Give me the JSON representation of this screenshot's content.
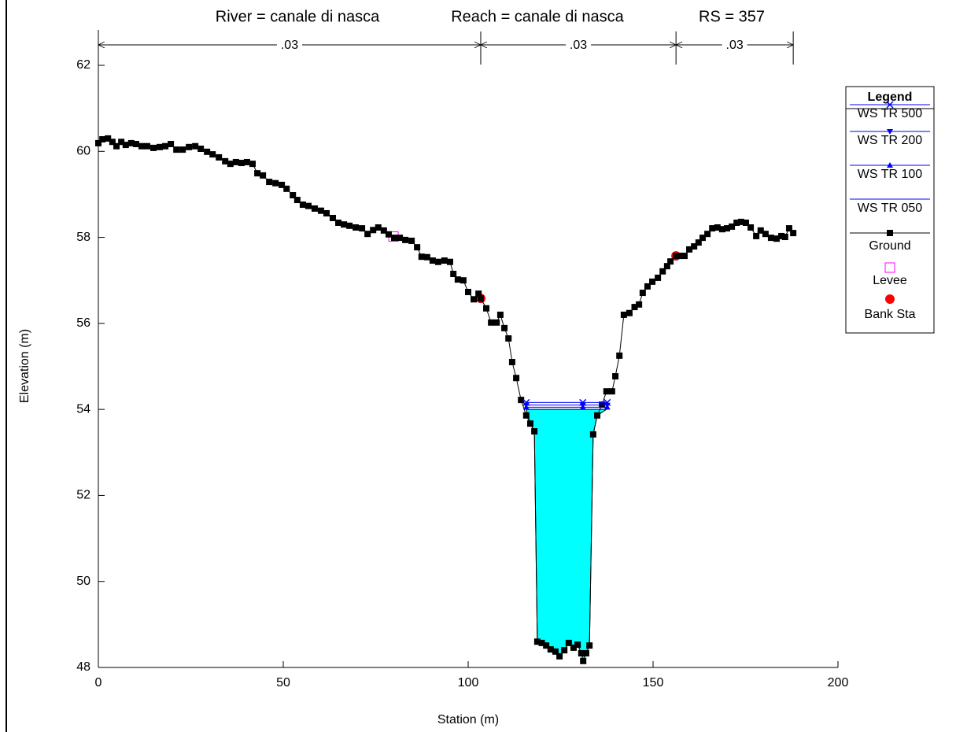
{
  "chart_data": {
    "type": "cross-section",
    "title": [
      "River = canale di nasca",
      "Reach = canale di nasca",
      "RS = 357"
    ],
    "x_label": "Station (m)",
    "y_label": "Elevation (m)",
    "xlim": [
      0,
      200
    ],
    "xticks": [
      0,
      50,
      100,
      150,
      200
    ],
    "ylim": [
      48,
      62
    ],
    "yticks": [
      48,
      50,
      52,
      54,
      56,
      58,
      60,
      62
    ],
    "legend_title": "Legend",
    "legend_position": "right",
    "n_values": {
      "labels": [
        ".03",
        ".03",
        ".03"
      ],
      "stations": [
        0,
        103.4,
        156.2,
        187.9
      ]
    },
    "series": [
      {
        "name": "WS TR 500",
        "color": "#0000ff",
        "marker": "x",
        "x": [
          115.7,
          131,
          137.6
        ],
        "values": [
          54.16,
          54.16,
          54.16
        ]
      },
      {
        "name": "WS TR 200",
        "color": "#0000ff",
        "marker": "triangle-down",
        "x": [
          115.7,
          131,
          137.6
        ],
        "values": [
          54.1,
          54.1,
          54.1
        ]
      },
      {
        "name": "WS TR 100",
        "color": "#0000ff",
        "marker": "triangle-up",
        "x": [
          115.7,
          131,
          137.6
        ],
        "values": [
          54.05,
          54.05,
          54.05
        ]
      },
      {
        "name": "WS TR 050",
        "color": "#0000ff",
        "marker": "none",
        "fill": "#00ffff",
        "x": [
          115.7,
          137.4
        ],
        "values": [
          54.0,
          54.0
        ]
      },
      {
        "name": "Ground",
        "color": "#000000",
        "marker": "square",
        "x": [
          0,
          1.1,
          2.6,
          3.8,
          4.9,
          6.2,
          7.4,
          8.9,
          10.2,
          11.7,
          13.2,
          14.9,
          16.6,
          18.1,
          19.6,
          21.1,
          22.8,
          24.5,
          26.2,
          27.7,
          29.4,
          30.9,
          32.6,
          34.3,
          35.7,
          37.2,
          38.7,
          40.2,
          41.7,
          43.0,
          44.5,
          46.2,
          47.9,
          49.6,
          50.9,
          52.6,
          53.8,
          55.3,
          56.8,
          58.5,
          60.2,
          61.7,
          63.4,
          64.9,
          66.4,
          67.9,
          69.6,
          71.3,
          72.8,
          74.3,
          75.7,
          77.2,
          78.5,
          80.0,
          81.5,
          83.0,
          84.7,
          86.2,
          87.4,
          88.9,
          90.4,
          91.9,
          93.6,
          95.1,
          96.0,
          97.2,
          98.7,
          100.0,
          101.5,
          102.8,
          103.4,
          104.9,
          106.2,
          107.7,
          108.7,
          109.8,
          110.9,
          111.9,
          113.0,
          114.3,
          115.7,
          116.8,
          117.9,
          118.7,
          119.9,
          121.1,
          122.3,
          123.6,
          124.7,
          126.0,
          127.2,
          128.5,
          129.6,
          130.6,
          131.1,
          131.9,
          132.8,
          133.8,
          134.9,
          136.2,
          137.4,
          138.9,
          139.8,
          140.9,
          142.1,
          143.6,
          145.0,
          146.2,
          147.2,
          148.5,
          149.8,
          151.3,
          152.6,
          153.8,
          154.7,
          156.2,
          157.2,
          158.5,
          159.8,
          161.1,
          162.3,
          163.4,
          164.7,
          166.0,
          167.4,
          168.7,
          170.0,
          171.3,
          172.6,
          173.8,
          175.1,
          176.4,
          177.9,
          179.1,
          180.4,
          181.9,
          183.4,
          184.7,
          185.7,
          186.8,
          187.9
        ],
        "values": [
          60.19,
          60.28,
          60.3,
          60.22,
          60.12,
          60.22,
          60.15,
          60.19,
          60.17,
          60.12,
          60.12,
          60.08,
          60.1,
          60.12,
          60.17,
          60.04,
          60.04,
          60.1,
          60.12,
          60.06,
          59.99,
          59.93,
          59.86,
          59.77,
          59.71,
          59.75,
          59.73,
          59.75,
          59.71,
          59.49,
          59.44,
          59.29,
          59.26,
          59.22,
          59.13,
          58.98,
          58.87,
          58.76,
          58.73,
          58.67,
          58.62,
          58.56,
          58.45,
          58.34,
          58.3,
          58.27,
          58.23,
          58.21,
          58.08,
          58.17,
          58.23,
          58.16,
          58.07,
          57.99,
          57.99,
          57.94,
          57.92,
          57.77,
          57.55,
          57.54,
          57.46,
          57.43,
          57.46,
          57.43,
          57.15,
          57.02,
          57.0,
          56.73,
          56.56,
          56.69,
          56.58,
          56.35,
          56.02,
          56.02,
          56.2,
          55.89,
          55.65,
          55.1,
          54.73,
          54.22,
          53.86,
          53.67,
          53.49,
          48.6,
          48.57,
          48.51,
          48.42,
          48.37,
          48.26,
          48.4,
          48.57,
          48.46,
          48.53,
          48.33,
          48.15,
          48.33,
          48.51,
          53.42,
          53.86,
          54.11,
          54.42,
          54.42,
          54.77,
          55.25,
          56.2,
          56.24,
          56.38,
          56.44,
          56.71,
          56.86,
          56.97,
          57.06,
          57.21,
          57.33,
          57.44,
          57.57,
          57.57,
          57.57,
          57.72,
          57.79,
          57.88,
          57.99,
          58.08,
          58.21,
          58.23,
          58.19,
          58.21,
          58.25,
          58.34,
          58.36,
          58.34,
          58.23,
          58.03,
          58.16,
          58.08,
          57.99,
          57.97,
          58.03,
          58.01,
          58.21,
          58.1
        ]
      },
      {
        "name": "Levee",
        "color": "#ff00ff",
        "marker": "open-square",
        "line": false,
        "x": [
          79.8
        ],
        "values": [
          58.02
        ]
      },
      {
        "name": "Bank Sta",
        "color": "#ff0000",
        "marker": "circle",
        "line": false,
        "x": [
          103.4,
          156.2
        ],
        "values": [
          56.58,
          57.57
        ]
      }
    ]
  }
}
